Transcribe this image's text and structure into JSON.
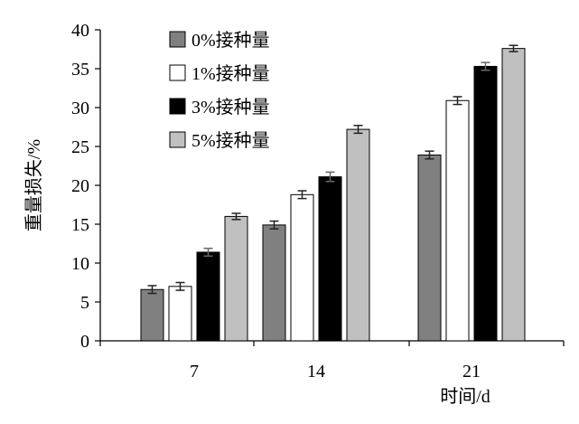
{
  "chart_data": {
    "type": "bar",
    "title": "",
    "xlabel": "时间/d",
    "ylabel": "重量损失/%",
    "categories": [
      "7",
      "14",
      "21"
    ],
    "ylim": [
      0,
      40
    ],
    "yticks": [
      0,
      5,
      10,
      15,
      20,
      25,
      30,
      35,
      40
    ],
    "legend_position": "top-left",
    "grid": false,
    "error_bars": true,
    "series": [
      {
        "name": "0%接种量",
        "color": "#808080",
        "values": [
          6.6,
          14.9,
          23.9
        ],
        "errors": [
          0.5,
          0.5,
          0.5
        ]
      },
      {
        "name": "1%接种量",
        "color": "#ffffff",
        "values": [
          7.0,
          18.8,
          30.9
        ],
        "errors": [
          0.5,
          0.5,
          0.5
        ]
      },
      {
        "name": "3%接种量",
        "color": "#000000",
        "values": [
          11.4,
          21.1,
          35.3
        ],
        "errors": [
          0.5,
          0.6,
          0.5
        ]
      },
      {
        "name": "5%接种量",
        "color": "#c0c0c0",
        "values": [
          16.0,
          27.2,
          37.6
        ],
        "errors": [
          0.4,
          0.5,
          0.4
        ]
      }
    ]
  }
}
